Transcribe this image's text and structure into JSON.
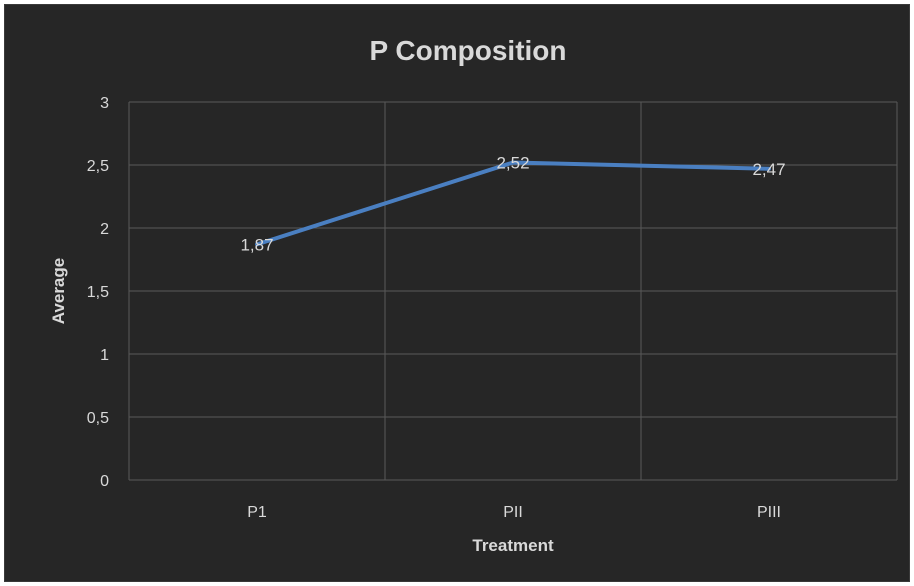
{
  "chart_data": {
    "type": "line",
    "title": "P Composition",
    "xlabel": "Treatment",
    "ylabel": "Average",
    "categories": [
      "P1",
      "PII",
      "PIII"
    ],
    "values": [
      1.87,
      2.52,
      2.47
    ],
    "data_labels": [
      "1,87",
      "2,52",
      "2,47"
    ],
    "ylim": [
      0,
      3
    ],
    "yticks": [
      0,
      0.5,
      1,
      1.5,
      2,
      2.5,
      3
    ],
    "ytick_labels": [
      "0",
      "0,5",
      "1",
      "1,5",
      "2",
      "2,5",
      "3"
    ],
    "grid": true,
    "legend": "none",
    "colors": {
      "background": "#262626",
      "line": "#4a7fc1",
      "grid": "#595959",
      "text": "#d9d9d9"
    }
  }
}
